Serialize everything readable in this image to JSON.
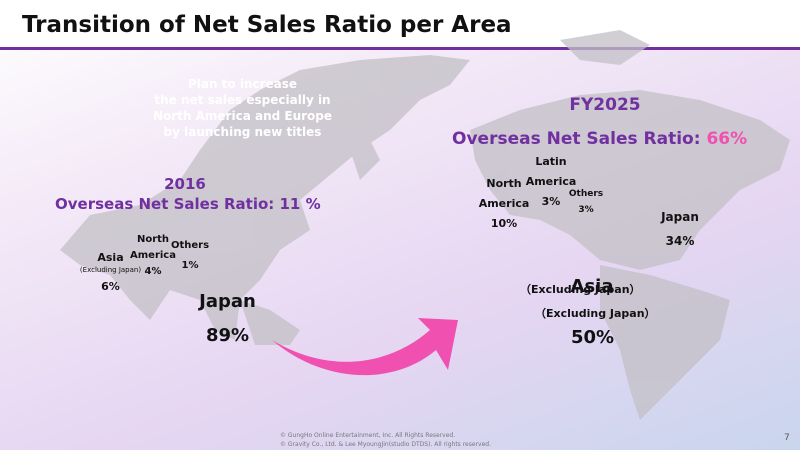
{
  "header": {
    "title": "Transition of Net Sales Ratio per Area"
  },
  "note": {
    "lines": [
      "Plan to increase",
      "the net sales especially in",
      "North America and Europe",
      "by launching new titles"
    ]
  },
  "left": {
    "year": "2016",
    "ratio": "Overseas Net Sales Ratio: 11 %",
    "asia": {
      "name": "Asia",
      "sub": "(Excluding Japan)",
      "share": "6%"
    },
    "north_america": {
      "name": [
        "North",
        "America"
      ],
      "share": "4%"
    },
    "others": {
      "name": "Others",
      "share": "1%"
    },
    "japan": {
      "name": "Japan",
      "share": "89%"
    }
  },
  "right": {
    "year": "FY2025",
    "ratio": "Overseas Net  Sales Ratio: ",
    "ratio_value": "66%",
    "north_america": {
      "name": [
        "North",
        "America"
      ],
      "share": "10%"
    },
    "latin_america": {
      "name": [
        "Latin",
        "America"
      ],
      "share": "3%"
    },
    "others": {
      "name": "Others",
      "share": "3%"
    },
    "japan": {
      "name": "Japan",
      "share": "34%"
    },
    "asia": {
      "sub_overlap": "（Excluding Japan）",
      "name": "Asia",
      "sub": "（Excluding Japan）",
      "share": "50%"
    }
  },
  "footer": {
    "lines": [
      "© GungHo Online Entertainment, Inc. All Rights Reserved.",
      "© Gravity Co., Ltd. & Lee MyoungJin(studio DTDS). All rights reserved."
    ],
    "page": "7"
  }
}
